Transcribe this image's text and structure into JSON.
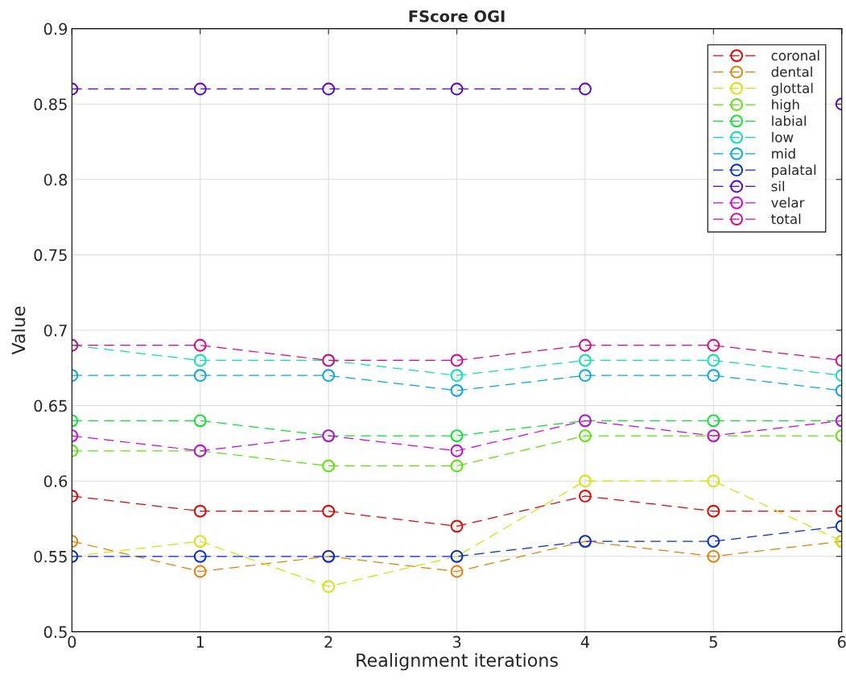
{
  "chart_data": {
    "type": "line",
    "title": "FScore OGI",
    "xlabel": "Realignment iterations",
    "ylabel": "Value",
    "x": [
      0,
      1,
      2,
      3,
      4,
      5,
      6
    ],
    "xlim": [
      0,
      6
    ],
    "xticks": [
      0,
      1,
      2,
      3,
      4,
      5,
      6
    ],
    "ylim": [
      0.5,
      0.9
    ],
    "yticks": [
      0.5,
      0.55,
      0.6,
      0.65,
      0.7,
      0.75,
      0.8,
      0.85,
      0.9
    ],
    "grid": true,
    "legend": "top right",
    "marker": "circle",
    "line_style": "dashed",
    "series": [
      {
        "name": "coronal",
        "color": "#e60000",
        "values": [
          0.59,
          0.58,
          0.58,
          0.57,
          0.59,
          0.58,
          0.58
        ]
      },
      {
        "name": "dental",
        "color": "#e67e00",
        "values": [
          0.56,
          0.54,
          0.55,
          0.54,
          0.56,
          0.55,
          0.56
        ]
      },
      {
        "name": "glottal",
        "color": "#d1e600",
        "values": [
          0.55,
          0.56,
          0.53,
          0.55,
          0.6,
          0.6,
          0.56
        ]
      },
      {
        "name": "high",
        "color": "#54e600",
        "values": [
          0.62,
          0.62,
          0.61,
          0.61,
          0.63,
          0.63,
          0.63
        ]
      },
      {
        "name": "labial",
        "color": "#00e629",
        "values": [
          0.64,
          0.64,
          0.63,
          0.63,
          0.64,
          0.64,
          0.64
        ]
      },
      {
        "name": "low",
        "color": "#00e6a6",
        "values": [
          0.69,
          0.68,
          0.68,
          0.67,
          0.68,
          0.68,
          0.67
        ]
      },
      {
        "name": "mid",
        "color": "#00a7e6",
        "values": [
          0.67,
          0.67,
          0.67,
          0.66,
          0.67,
          0.67,
          0.66
        ]
      },
      {
        "name": "palatal",
        "color": "#0029e6",
        "values": [
          0.55,
          0.55,
          0.55,
          0.55,
          0.56,
          0.56,
          0.57
        ]
      },
      {
        "name": "sil",
        "color": "#5400e6",
        "values": [
          0.86,
          0.86,
          0.86,
          0.86,
          0.86,
          null,
          0.85
        ]
      },
      {
        "name": "velar",
        "color": "#d100e6",
        "values": [
          0.63,
          0.62,
          0.63,
          0.62,
          0.64,
          0.63,
          0.64
        ]
      },
      {
        "name": "total",
        "color": "#e6007e",
        "values": [
          0.69,
          0.69,
          0.68,
          0.68,
          0.69,
          0.69,
          0.68
        ]
      }
    ]
  }
}
